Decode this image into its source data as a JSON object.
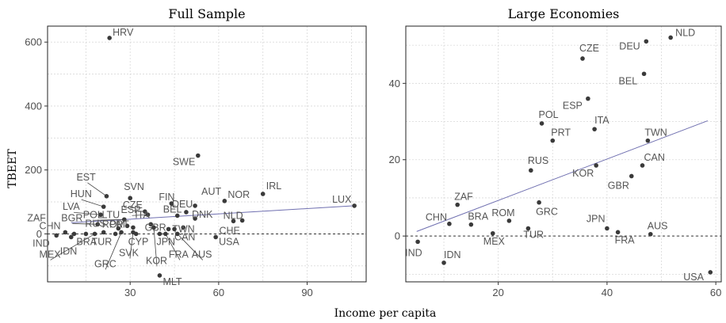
{
  "figure": {
    "ylabel": "TBEET",
    "xlabel": "Income per capita"
  },
  "chart_data": [
    {
      "type": "scatter",
      "title": "Full Sample",
      "xlim": [
        2,
        110
      ],
      "ylim": [
        -150,
        650
      ],
      "xticks": [
        30,
        60,
        90
      ],
      "yticks": [
        0,
        200,
        400,
        600
      ],
      "grid": true,
      "zero_line": true,
      "fit_line": {
        "x": [
          10,
          106
        ],
        "y": [
          35,
          88
        ]
      },
      "points": [
        {
          "label": "HRV",
          "x": 23,
          "y": 613
        },
        {
          "label": "SWE",
          "x": 53,
          "y": 245
        },
        {
          "label": "LUX",
          "x": 106,
          "y": 88
        },
        {
          "label": "IRL",
          "x": 75,
          "y": 125
        },
        {
          "label": "NOR",
          "x": 62,
          "y": 103
        },
        {
          "label": "AUT",
          "x": 52,
          "y": 88
        },
        {
          "label": "FIN",
          "x": 44,
          "y": 95
        },
        {
          "label": "DEU",
          "x": 49,
          "y": 68
        },
        {
          "label": "BEL",
          "x": 46,
          "y": 57
        },
        {
          "label": "DNK",
          "x": 52,
          "y": 48
        },
        {
          "label": "NLD",
          "x": 68,
          "y": 42
        },
        {
          "label": "CHE",
          "x": 65,
          "y": 40
        },
        {
          "label": "SVN",
          "x": 30,
          "y": 112
        },
        {
          "label": "EST",
          "x": 22,
          "y": 118
        },
        {
          "label": "HUN",
          "x": 21,
          "y": 85
        },
        {
          "label": "CZE",
          "x": 35,
          "y": 70
        },
        {
          "label": "ESP",
          "x": 36,
          "y": 60
        },
        {
          "label": "LVA",
          "x": 20,
          "y": 60
        },
        {
          "label": "POL",
          "x": 28,
          "y": 45
        },
        {
          "label": "ITA",
          "x": 37,
          "y": 30
        },
        {
          "label": "LTU",
          "x": 29,
          "y": 25
        },
        {
          "label": "PRT",
          "x": 31,
          "y": 20
        },
        {
          "label": "GBR",
          "x": 43,
          "y": 15
        },
        {
          "label": "TWN",
          "x": 48,
          "y": 20
        },
        {
          "label": "BGR",
          "x": 19,
          "y": 30
        },
        {
          "label": "RUS",
          "x": 26,
          "y": 17
        },
        {
          "label": "ZAF",
          "x": 8,
          "y": 5
        },
        {
          "label": "CHN",
          "x": 11,
          "y": 0
        },
        {
          "label": "ROM",
          "x": 21,
          "y": 5
        },
        {
          "label": "IND",
          "x": 5,
          "y": -5
        },
        {
          "label": "BRA",
          "x": 15,
          "y": 0
        },
        {
          "label": "IDN",
          "x": 10,
          "y": -10
        },
        {
          "label": "TUR",
          "x": 25,
          "y": 0
        },
        {
          "label": "MEX",
          "x": 18,
          "y": 0
        },
        {
          "label": "CYP",
          "x": 32,
          "y": 0
        },
        {
          "label": "SVK",
          "x": 31,
          "y": 5
        },
        {
          "label": "GRC",
          "x": 27,
          "y": 5
        },
        {
          "label": "JPN",
          "x": 40,
          "y": 0
        },
        {
          "label": "CAN",
          "x": 45,
          "y": 15
        },
        {
          "label": "FRA",
          "x": 42,
          "y": 0
        },
        {
          "label": "AUS",
          "x": 46,
          "y": 0
        },
        {
          "label": "USA",
          "x": 59,
          "y": -10
        },
        {
          "label": "KOR",
          "x": 38,
          "y": 20
        },
        {
          "label": "MLT",
          "x": 40,
          "y": -130
        }
      ]
    },
    {
      "type": "scatter",
      "title": "Large Economies",
      "xlim": [
        3,
        61
      ],
      "ylim": [
        -12,
        55
      ],
      "xticks": [
        20,
        40,
        60
      ],
      "yticks": [
        0,
        20,
        40
      ],
      "grid": true,
      "zero_line": true,
      "fit_line": {
        "x": [
          5,
          58.5
        ],
        "y": [
          1.2,
          30.2
        ]
      },
      "points": [
        {
          "label": "NLD",
          "x": 51.7,
          "y": 52
        },
        {
          "label": "DEU",
          "x": 47.2,
          "y": 51
        },
        {
          "label": "CZE",
          "x": 35.5,
          "y": 46.5
        },
        {
          "label": "BEL",
          "x": 46.8,
          "y": 42.5
        },
        {
          "label": "ESP",
          "x": 36.5,
          "y": 36
        },
        {
          "label": "POL",
          "x": 28,
          "y": 29.5
        },
        {
          "label": "ITA",
          "x": 37.7,
          "y": 28
        },
        {
          "label": "PRT",
          "x": 30,
          "y": 25
        },
        {
          "label": "TWN",
          "x": 47.5,
          "y": 25
        },
        {
          "label": "RUS",
          "x": 26,
          "y": 17.2
        },
        {
          "label": "KOR",
          "x": 38,
          "y": 18.5
        },
        {
          "label": "CAN",
          "x": 46.5,
          "y": 18.5
        },
        {
          "label": "GBR",
          "x": 44.5,
          "y": 15.7
        },
        {
          "label": "ZAF",
          "x": 12.5,
          "y": 8.2
        },
        {
          "label": "GRC",
          "x": 27.5,
          "y": 8.8
        },
        {
          "label": "CHN",
          "x": 11,
          "y": 3.2
        },
        {
          "label": "BRA",
          "x": 15,
          "y": 3
        },
        {
          "label": "ROM",
          "x": 22,
          "y": 4
        },
        {
          "label": "MEX",
          "x": 19,
          "y": 0.7
        },
        {
          "label": "TUR",
          "x": 25.5,
          "y": 2
        },
        {
          "label": "JPN",
          "x": 40,
          "y": 2
        },
        {
          "label": "FRA",
          "x": 42,
          "y": 1
        },
        {
          "label": "AUS",
          "x": 48,
          "y": 0.5
        },
        {
          "label": "IND",
          "x": 5.2,
          "y": -1.5
        },
        {
          "label": "IDN",
          "x": 10,
          "y": -7
        },
        {
          "label": "USA",
          "x": 59,
          "y": -9.5
        }
      ]
    }
  ]
}
